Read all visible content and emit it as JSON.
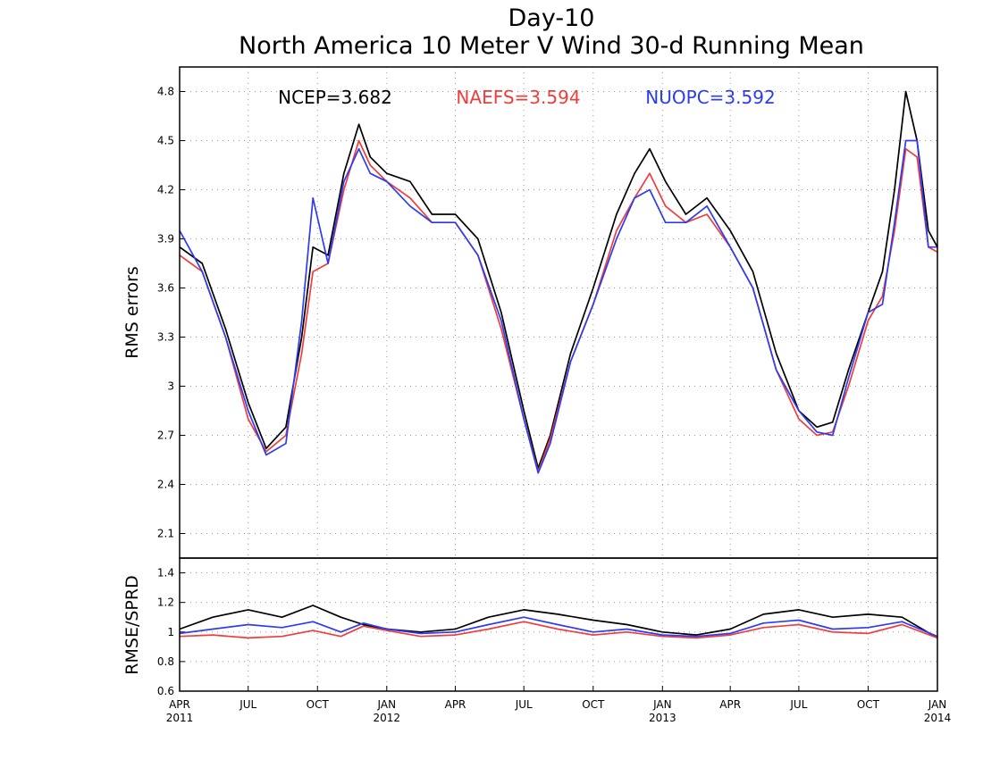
{
  "chart_data": [
    {
      "type": "line",
      "title": "Day-10",
      "subtitle": "North America 10 Meter V Wind 30-d Running Mean",
      "ylabel": "RMS errors",
      "ylim": [
        1.95,
        4.95
      ],
      "yticks": [
        "2.1",
        "2.4",
        "2.7",
        "3",
        "3.3",
        "3.6",
        "3.9",
        "4.2",
        "4.5",
        "4.8"
      ],
      "grid": true,
      "legend_stats": [
        {
          "label": "NCEP=3.682",
          "color": "#000000"
        },
        {
          "label": "NAEFS=3.594",
          "color": "#f03c3c"
        },
        {
          "label": "NUOPC=3.592",
          "color": "#2c3cf0"
        }
      ],
      "x_start": "2011-04-01",
      "x_end": "2014-01-01",
      "series": [
        {
          "name": "NCEP",
          "color": "#000000",
          "x": [
            "2011-04-01",
            "2011-05-01",
            "2011-06-01",
            "2011-07-01",
            "2011-07-25",
            "2011-08-20",
            "2011-09-10",
            "2011-09-25",
            "2011-10-15",
            "2011-11-05",
            "2011-11-25",
            "2011-12-10",
            "2012-01-01",
            "2012-02-01",
            "2012-03-01",
            "2012-04-01",
            "2012-05-01",
            "2012-06-01",
            "2012-07-01",
            "2012-07-20",
            "2012-08-05",
            "2012-09-01",
            "2012-10-01",
            "2012-11-01",
            "2012-11-25",
            "2012-12-15",
            "2013-01-05",
            "2013-02-01",
            "2013-03-01",
            "2013-04-01",
            "2013-05-01",
            "2013-06-01",
            "2013-07-01",
            "2013-07-25",
            "2013-08-15",
            "2013-09-05",
            "2013-10-01",
            "2013-10-20",
            "2013-11-05",
            "2013-11-20",
            "2013-12-05",
            "2013-12-20",
            "2014-01-01"
          ],
          "values": [
            3.85,
            3.75,
            3.35,
            2.9,
            2.62,
            2.75,
            3.3,
            3.85,
            3.8,
            4.3,
            4.6,
            4.4,
            4.3,
            4.25,
            4.05,
            4.05,
            3.9,
            3.45,
            2.85,
            2.5,
            2.7,
            3.2,
            3.6,
            4.05,
            4.3,
            4.45,
            4.25,
            4.05,
            4.15,
            3.95,
            3.7,
            3.2,
            2.85,
            2.75,
            2.78,
            3.1,
            3.45,
            3.7,
            4.2,
            4.8,
            4.5,
            3.95,
            3.85
          ]
        },
        {
          "name": "NAEFS",
          "color": "#f03c3c",
          "x": [
            "2011-04-01",
            "2011-05-01",
            "2011-06-01",
            "2011-07-01",
            "2011-07-25",
            "2011-08-20",
            "2011-09-10",
            "2011-09-25",
            "2011-10-15",
            "2011-11-05",
            "2011-11-25",
            "2011-12-10",
            "2012-01-01",
            "2012-02-01",
            "2012-03-01",
            "2012-04-01",
            "2012-05-01",
            "2012-06-01",
            "2012-07-01",
            "2012-07-20",
            "2012-08-05",
            "2012-09-01",
            "2012-10-01",
            "2012-11-01",
            "2012-11-25",
            "2012-12-15",
            "2013-01-05",
            "2013-02-01",
            "2013-03-01",
            "2013-04-01",
            "2013-05-01",
            "2013-06-01",
            "2013-07-01",
            "2013-07-25",
            "2013-08-15",
            "2013-09-05",
            "2013-10-01",
            "2013-10-20",
            "2013-11-05",
            "2013-11-20",
            "2013-12-05",
            "2013-12-20",
            "2014-01-01"
          ],
          "values": [
            3.8,
            3.7,
            3.3,
            2.8,
            2.6,
            2.7,
            3.2,
            3.7,
            3.75,
            4.2,
            4.5,
            4.35,
            4.25,
            4.15,
            4.0,
            4.0,
            3.8,
            3.35,
            2.8,
            2.48,
            2.68,
            3.15,
            3.5,
            3.95,
            4.15,
            4.3,
            4.1,
            4.0,
            4.05,
            3.85,
            3.6,
            3.1,
            2.8,
            2.7,
            2.72,
            3.0,
            3.4,
            3.55,
            3.95,
            4.45,
            4.4,
            3.85,
            3.82
          ]
        },
        {
          "name": "NUOPC",
          "color": "#2c3cf0",
          "x": [
            "2011-04-01",
            "2011-05-01",
            "2011-06-01",
            "2011-07-01",
            "2011-07-25",
            "2011-08-20",
            "2011-09-10",
            "2011-09-25",
            "2011-10-15",
            "2011-11-05",
            "2011-11-25",
            "2011-12-10",
            "2012-01-01",
            "2012-02-01",
            "2012-03-01",
            "2012-04-01",
            "2012-05-01",
            "2012-06-01",
            "2012-07-01",
            "2012-07-20",
            "2012-08-05",
            "2012-09-01",
            "2012-10-01",
            "2012-11-01",
            "2012-11-25",
            "2012-12-15",
            "2013-01-05",
            "2013-02-01",
            "2013-03-01",
            "2013-04-01",
            "2013-05-01",
            "2013-06-01",
            "2013-07-01",
            "2013-07-25",
            "2013-08-15",
            "2013-09-05",
            "2013-10-01",
            "2013-10-20",
            "2013-11-05",
            "2013-11-20",
            "2013-12-05",
            "2013-12-20",
            "2014-01-01"
          ],
          "values": [
            3.95,
            3.7,
            3.3,
            2.85,
            2.58,
            2.65,
            3.4,
            4.15,
            3.75,
            4.25,
            4.45,
            4.3,
            4.25,
            4.1,
            4.0,
            4.0,
            3.8,
            3.4,
            2.8,
            2.47,
            2.65,
            3.15,
            3.5,
            3.9,
            4.15,
            4.2,
            4.0,
            4.0,
            4.1,
            3.85,
            3.6,
            3.1,
            2.85,
            2.72,
            2.7,
            3.05,
            3.45,
            3.5,
            4.0,
            4.5,
            4.5,
            3.85,
            3.85
          ]
        }
      ]
    },
    {
      "type": "line",
      "ylabel": "RMSE/SPRD",
      "ylim": [
        0.6,
        1.5
      ],
      "yticks": [
        "0.6",
        "0.8",
        "1",
        "1.2",
        "1.4"
      ],
      "grid": true,
      "x_start": "2011-04-01",
      "x_end": "2014-01-01",
      "xtick_labels": [
        {
          "month": "APR",
          "year": "2011",
          "date": "2011-04-01"
        },
        {
          "month": "JUL",
          "year": "",
          "date": "2011-07-01"
        },
        {
          "month": "OCT",
          "year": "",
          "date": "2011-10-01"
        },
        {
          "month": "JAN",
          "year": "2012",
          "date": "2012-01-01"
        },
        {
          "month": "APR",
          "year": "",
          "date": "2012-04-01"
        },
        {
          "month": "JUL",
          "year": "",
          "date": "2012-07-01"
        },
        {
          "month": "OCT",
          "year": "",
          "date": "2012-10-01"
        },
        {
          "month": "JAN",
          "year": "2013",
          "date": "2013-01-01"
        },
        {
          "month": "APR",
          "year": "",
          "date": "2013-04-01"
        },
        {
          "month": "JUL",
          "year": "",
          "date": "2013-07-01"
        },
        {
          "month": "OCT",
          "year": "",
          "date": "2013-10-01"
        },
        {
          "month": "JAN",
          "year": "2014",
          "date": "2014-01-01"
        }
      ],
      "series": [
        {
          "name": "NCEP",
          "color": "#000000",
          "x": [
            "2011-04-01",
            "2011-05-15",
            "2011-07-01",
            "2011-08-15",
            "2011-09-25",
            "2011-11-01",
            "2011-12-01",
            "2012-01-01",
            "2012-02-15",
            "2012-04-01",
            "2012-05-15",
            "2012-07-01",
            "2012-08-15",
            "2012-10-01",
            "2012-11-15",
            "2013-01-01",
            "2013-02-15",
            "2013-04-01",
            "2013-05-15",
            "2013-07-01",
            "2013-08-15",
            "2013-10-01",
            "2013-11-15",
            "2014-01-01"
          ],
          "values": [
            1.02,
            1.1,
            1.15,
            1.1,
            1.18,
            1.1,
            1.05,
            1.02,
            1.0,
            1.02,
            1.1,
            1.15,
            1.12,
            1.08,
            1.05,
            1.0,
            0.98,
            1.02,
            1.12,
            1.15,
            1.1,
            1.12,
            1.1,
            0.96
          ]
        },
        {
          "name": "NAEFS",
          "color": "#f03c3c",
          "x": [
            "2011-04-01",
            "2011-05-15",
            "2011-07-01",
            "2011-08-15",
            "2011-09-25",
            "2011-11-01",
            "2011-12-01",
            "2012-01-01",
            "2012-02-15",
            "2012-04-01",
            "2012-05-15",
            "2012-07-01",
            "2012-08-15",
            "2012-10-01",
            "2012-11-15",
            "2013-01-01",
            "2013-02-15",
            "2013-04-01",
            "2013-05-15",
            "2013-07-01",
            "2013-08-15",
            "2013-10-01",
            "2013-11-15",
            "2014-01-01"
          ],
          "values": [
            0.97,
            0.98,
            0.96,
            0.97,
            1.01,
            0.97,
            1.04,
            1.01,
            0.97,
            0.98,
            1.02,
            1.07,
            1.02,
            0.98,
            1.0,
            0.97,
            0.96,
            0.98,
            1.03,
            1.05,
            1.0,
            0.99,
            1.05,
            0.96
          ]
        },
        {
          "name": "NUOPC",
          "color": "#2c3cf0",
          "x": [
            "2011-04-01",
            "2011-05-15",
            "2011-07-01",
            "2011-08-15",
            "2011-09-25",
            "2011-11-01",
            "2011-12-01",
            "2012-01-01",
            "2012-02-15",
            "2012-04-01",
            "2012-05-15",
            "2012-07-01",
            "2012-08-15",
            "2012-10-01",
            "2012-11-15",
            "2013-01-01",
            "2013-02-15",
            "2013-04-01",
            "2013-05-15",
            "2013-07-01",
            "2013-08-15",
            "2013-10-01",
            "2013-11-15",
            "2014-01-01"
          ],
          "values": [
            0.99,
            1.02,
            1.05,
            1.03,
            1.07,
            1.0,
            1.06,
            1.02,
            0.99,
            1.0,
            1.05,
            1.1,
            1.05,
            1.0,
            1.02,
            0.98,
            0.97,
            0.99,
            1.06,
            1.08,
            1.02,
            1.03,
            1.07,
            0.97
          ]
        }
      ]
    }
  ]
}
